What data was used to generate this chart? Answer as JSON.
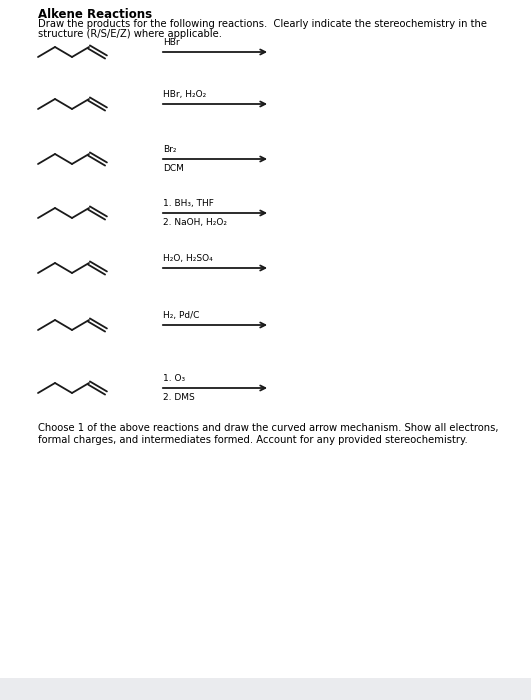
{
  "title": "Alkene Reactions",
  "subtitle_line1": "Draw the products for the following reactions.  Clearly indicate the stereochemistry in the",
  "subtitle_line2": "structure (R/S/E/Z) where applicable.",
  "reactions": [
    {
      "reagent_line1": "HBr",
      "reagent_line2": null
    },
    {
      "reagent_line1": "HBr, H₂O₂",
      "reagent_line2": null
    },
    {
      "reagent_line1": "Br₂",
      "reagent_line2": "DCM"
    },
    {
      "reagent_line1": "1. BH₃, THF",
      "reagent_line2": "2. NaOH, H₂O₂"
    },
    {
      "reagent_line1": "H₂O, H₂SO₄",
      "reagent_line2": null
    },
    {
      "reagent_line1": "H₂, Pd/C",
      "reagent_line2": null
    },
    {
      "reagent_line1": "1. O₃",
      "reagent_line2": "2. DMS"
    }
  ],
  "footer_line1": "Choose 1 of the above reactions and draw the curved arrow mechanism. Show all electrons,",
  "footer_line2": "formal charges, and intermediates formed. Account for any provided stereochemistry.",
  "bg_color": "#ffffff",
  "text_color": "#000000",
  "footer_bg": "#eaebee"
}
